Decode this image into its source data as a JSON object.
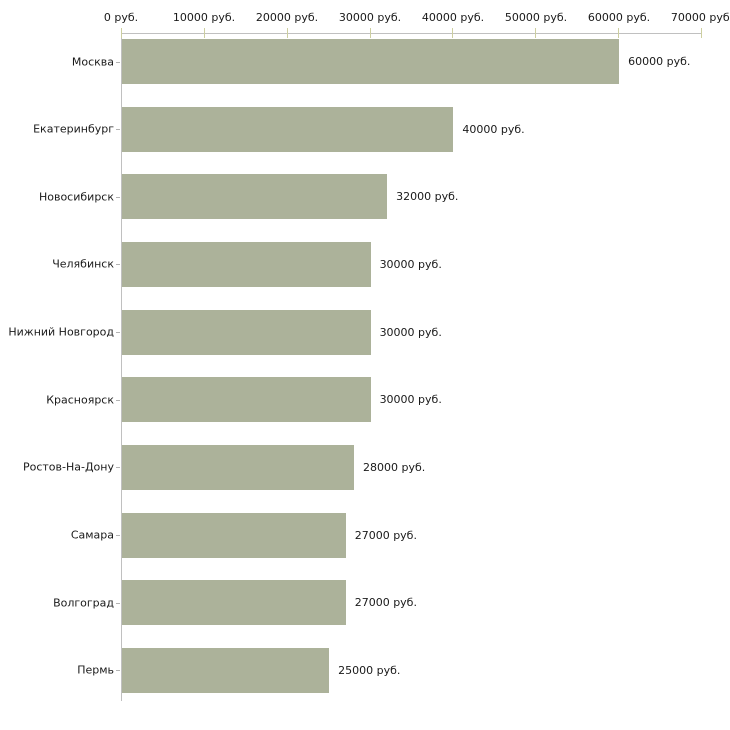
{
  "chart_data": {
    "type": "bar",
    "orientation": "horizontal",
    "title": "",
    "xlabel": "",
    "ylabel": "",
    "unit": "руб.",
    "categories": [
      "Москва",
      "Екатеринбург",
      "Новосибирск",
      "Челябинск",
      "Нижний Новгород",
      "Красноярск",
      "Ростов-На-Дону",
      "Самара",
      "Волгоград",
      "Пермь"
    ],
    "values": [
      60000,
      40000,
      32000,
      30000,
      30000,
      30000,
      28000,
      27000,
      27000,
      25000
    ],
    "value_labels": [
      "60000 руб.",
      "40000 руб.",
      "32000 руб.",
      "30000 руб.",
      "30000 руб.",
      "30000 руб.",
      "28000 руб.",
      "27000 руб.",
      "27000 руб.",
      "25000 руб."
    ],
    "x_ticks": [
      0,
      10000,
      20000,
      30000,
      40000,
      50000,
      60000,
      70000
    ],
    "x_tick_labels": [
      "0 руб.",
      "10000 руб.",
      "20000 руб.",
      "30000 руб.",
      "40000 руб.",
      "50000 руб.",
      "60000 руб.",
      "70000 руб."
    ],
    "xlim": [
      0,
      70000
    ],
    "grid": false,
    "legend": false,
    "colors": {
      "bar": "#acb29a",
      "axis": "#c0c0c0",
      "tick": "#cdcfa0",
      "ytick": "#b3b3b3",
      "text": "#1a1a1a",
      "background": "#ffffff"
    }
  }
}
